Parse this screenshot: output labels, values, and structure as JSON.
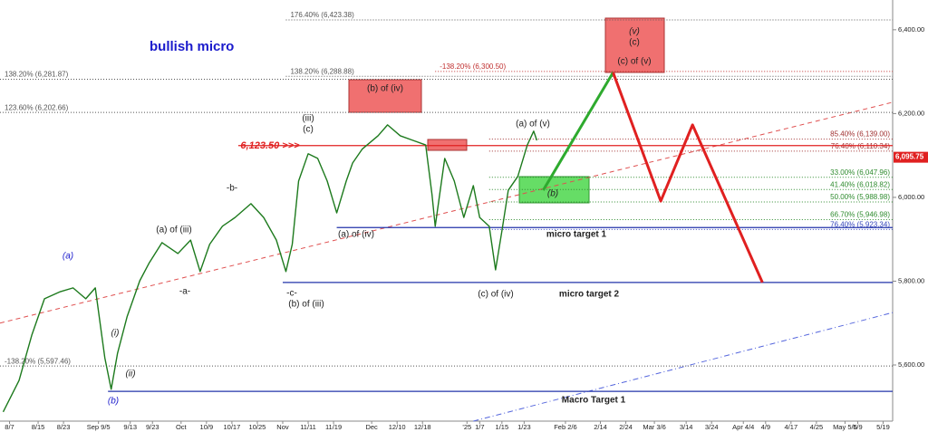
{
  "chart_data": {
    "type": "line",
    "xlim": [
      0,
      281
    ],
    "ylim": [
      5466,
      6471
    ],
    "xticks": [
      {
        "value": 3,
        "label": "8/7"
      },
      {
        "value": 12,
        "label": "8/15"
      },
      {
        "value": 20,
        "label": "8/23"
      },
      {
        "value": 31,
        "label": "Sep 9/5"
      },
      {
        "value": 41,
        "label": "9/13"
      },
      {
        "value": 48,
        "label": "9/23"
      },
      {
        "value": 57,
        "label": "Oct"
      },
      {
        "value": 65,
        "label": "10/9"
      },
      {
        "value": 73,
        "label": "10/17"
      },
      {
        "value": 81,
        "label": "10/25"
      },
      {
        "value": 89,
        "label": "Nov"
      },
      {
        "value": 97,
        "label": "11/11"
      },
      {
        "value": 105,
        "label": "11/19"
      },
      {
        "value": 117,
        "label": "Dec"
      },
      {
        "value": 125,
        "label": "12/10"
      },
      {
        "value": 133,
        "label": "12/18"
      },
      {
        "value": 147,
        "label": "'25"
      },
      {
        "value": 151,
        "label": "1/7"
      },
      {
        "value": 158,
        "label": "1/15"
      },
      {
        "value": 165,
        "label": "1/23"
      },
      {
        "value": 178,
        "label": "Feb 2/6"
      },
      {
        "value": 189,
        "label": "2/14"
      },
      {
        "value": 197,
        "label": "2/24"
      },
      {
        "value": 206,
        "label": "Mar 3/6"
      },
      {
        "value": 216,
        "label": "3/14"
      },
      {
        "value": 224,
        "label": "3/24"
      },
      {
        "value": 234,
        "label": "Apr 4/4"
      },
      {
        "value": 241,
        "label": "4/9"
      },
      {
        "value": 249,
        "label": "4/17"
      },
      {
        "value": 257,
        "label": "4/25"
      },
      {
        "value": 266,
        "label": "May 5/6"
      },
      {
        "value": 270,
        "label": "5/9"
      },
      {
        "value": 278,
        "label": "5/19"
      }
    ],
    "yticks": [
      {
        "value": 5600,
        "label": "5,600.00"
      },
      {
        "value": 5800,
        "label": "5,800.00"
      },
      {
        "value": 6000,
        "label": "6,000.00"
      },
      {
        "value": 6200,
        "label": "6,200.00"
      },
      {
        "value": 6400,
        "label": "6,400.00"
      }
    ],
    "series": [
      {
        "name": "price",
        "color": "#1d7a1d",
        "x": [
          1,
          6,
          10,
          14,
          19,
          23,
          27,
          30,
          33,
          35,
          37,
          40,
          44,
          47,
          51,
          56,
          60,
          63,
          66,
          70,
          74,
          79,
          83,
          87,
          90,
          92,
          94,
          97,
          100,
          103,
          106,
          109,
          111,
          114,
          119,
          122,
          126,
          130,
          134,
          136,
          137,
          140,
          143,
          146,
          149,
          151,
          154,
          156,
          158,
          160,
          163,
          166,
          168,
          169
        ],
        "values": [
          5488,
          5563,
          5671,
          5758,
          5775,
          5784,
          5758,
          5784,
          5617,
          5542,
          5628,
          5715,
          5801,
          5844,
          5892,
          5866,
          5898,
          5823,
          5888,
          5931,
          5952,
          5985,
          5952,
          5898,
          5823,
          5888,
          6039,
          6104,
          6093,
          6039,
          5963,
          6039,
          6082,
          6115,
          6147,
          6173,
          6147,
          6136,
          6125,
          6006,
          5931,
          6093,
          6039,
          5952,
          6028,
          5952,
          5931,
          5827,
          5920,
          6017,
          6050,
          6125,
          6158,
          6136
        ]
      },
      {
        "name": "projection up",
        "color": "#2eaa2e",
        "x": [
          171,
          193
        ],
        "values": [
          6017,
          6298
        ]
      },
      {
        "name": "projection down",
        "color": "#e02020",
        "x": [
          193,
          208,
          218,
          240
        ],
        "values": [
          6298,
          5991,
          6173,
          5797
        ]
      }
    ],
    "levels": [
      {
        "label": "176.40% (6,423.38)",
        "value": 6423.38,
        "from": 90,
        "color": "#555555"
      },
      {
        "label": "138.20% (6,281.87)",
        "value": 6281.87,
        "from": 0,
        "color": "#555555"
      },
      {
        "label": "138.20% (6,288.88)",
        "value": 6288.88,
        "from": 90,
        "color": "#555555"
      },
      {
        "label": "-138.20% (6,300.50)",
        "value": 6300.5,
        "from": 137,
        "color": "#c03030"
      },
      {
        "label": "123.60% (6,202.66)",
        "value": 6202.66,
        "from": 0,
        "color": "#555555"
      },
      {
        "label": "85.40% (6,139.00)",
        "value": 6139.0,
        "from": 154,
        "color": "#a03030"
      },
      {
        "label": "76.40% (6,110.34)",
        "value": 6110.34,
        "from": 154,
        "color": "#a03030"
      },
      {
        "label": "33.00% (6,047.96)",
        "value": 6047.96,
        "from": 154,
        "color": "#2e8b2e"
      },
      {
        "label": "41.40% (6,018.82)",
        "value": 6018.82,
        "from": 154,
        "color": "#2e8b2e"
      },
      {
        "label": "50.00% (5,988.98)",
        "value": 5988.98,
        "from": 154,
        "color": "#2e8b2e"
      },
      {
        "label": "66.70% (5,946.98)",
        "value": 5946.98,
        "from": 154,
        "color": "#2e8b2e"
      },
      {
        "label": "76.40% (5,923.34)",
        "value": 5923.34,
        "from": 154,
        "color": "#3344bb"
      },
      {
        "label": "-138.20% (5,597.46)",
        "value": 5597.46,
        "from": 0,
        "color": "#555555"
      }
    ],
    "targets": [
      {
        "value": 6123.5,
        "from": 75,
        "color": "#e02020"
      },
      {
        "value": 5928,
        "from": 106,
        "color": "#2233aa"
      },
      {
        "value": 5797,
        "from": 89,
        "color": "#2233aa"
      },
      {
        "value": 5537,
        "from": 34,
        "color": "#2233aa"
      }
    ],
    "trendlines": [
      {
        "x": [
          0,
          281
        ],
        "values": [
          5700,
          6227
        ],
        "color": "#e05050",
        "dash": "5,4"
      },
      {
        "x": [
          149,
          281
        ],
        "values": [
          5466,
          5725
        ],
        "color": "#5566dd",
        "dash": "6,3,1,3"
      }
    ],
    "last_price": {
      "value": 6095.75,
      "label": "6,095.75"
    },
    "annotations": [
      "bullish micro",
      "(a)",
      "(b)",
      "(i)",
      "(ii)",
      "(a) of (iii)",
      "-b-",
      "-a-",
      "-c-",
      "(b) of (iii)",
      "(iii)",
      "(c)",
      "6,123.50 >>>",
      "(a) of (iv)",
      "(b) of (iv)",
      "(c) of (iv)",
      "(a) of (v)",
      "(b)",
      "(v)",
      "(c)",
      "(c) of (v)",
      "micro target 1",
      "micro target 2",
      "Macro Target 1"
    ]
  }
}
